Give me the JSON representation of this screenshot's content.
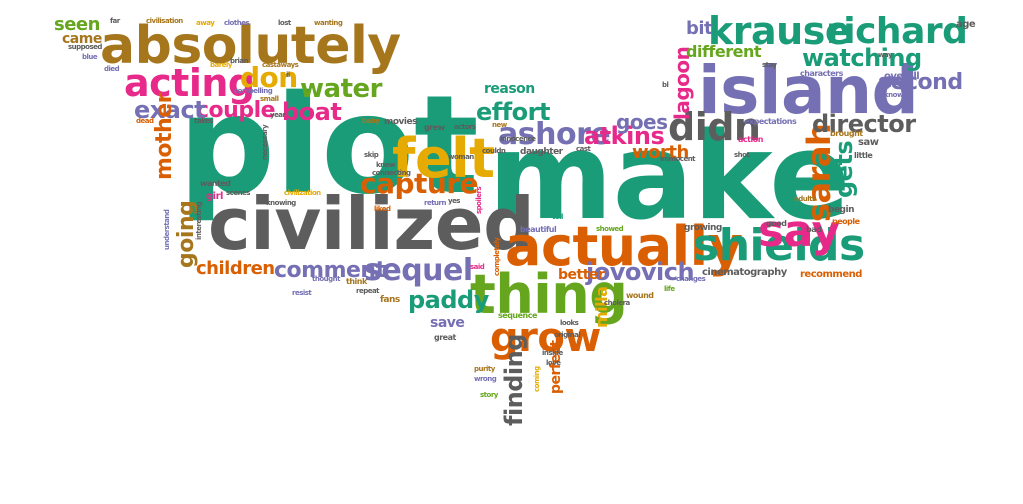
{
  "colors": {
    "teal": "#1a9c78",
    "gray": "#5d5d5d",
    "purple": "#7570b3",
    "orange": "#d95f02",
    "pink": "#e7298a",
    "green": "#66a61e",
    "gold": "#e6ab02",
    "olive": "#a6761d"
  },
  "words": [
    {
      "text": "plot"
    },
    {
      "text": "make"
    },
    {
      "text": "civilized"
    },
    {
      "text": "island"
    },
    {
      "text": "absolutely"
    },
    {
      "text": "actually"
    },
    {
      "text": "thing"
    },
    {
      "text": "shields"
    },
    {
      "text": "felt"
    },
    {
      "text": "krause"
    },
    {
      "text": "richard"
    },
    {
      "text": "grow"
    },
    {
      "text": "acting"
    },
    {
      "text": "sequel"
    },
    {
      "text": "capture"
    },
    {
      "text": "ashore"
    },
    {
      "text": "say"
    },
    {
      "text": "didn"
    },
    {
      "text": "sarah"
    },
    {
      "text": "water"
    },
    {
      "text": "don"
    },
    {
      "text": "watching"
    },
    {
      "text": "second"
    },
    {
      "text": "director"
    },
    {
      "text": "jovovich"
    },
    {
      "text": "paddy"
    },
    {
      "text": "comment"
    },
    {
      "text": "children"
    },
    {
      "text": "effort"
    },
    {
      "text": "boat"
    },
    {
      "text": "couple"
    },
    {
      "text": "exact"
    },
    {
      "text": "atkins"
    },
    {
      "text": "goes"
    },
    {
      "text": "finding"
    },
    {
      "text": "mother"
    },
    {
      "text": "going"
    },
    {
      "text": "gets"
    },
    {
      "text": "worth"
    },
    {
      "text": "lagoon"
    },
    {
      "text": "bit"
    },
    {
      "text": "different"
    },
    {
      "text": "seen"
    },
    {
      "text": "came"
    },
    {
      "text": "reason"
    },
    {
      "text": "better"
    },
    {
      "text": "milla"
    },
    {
      "text": "perfect"
    },
    {
      "text": "save"
    },
    {
      "text": "age"
    },
    {
      "text": "recommend"
    },
    {
      "text": "cinematography"
    },
    {
      "text": "overall"
    },
    {
      "text": "characters"
    },
    {
      "text": "expectations"
    },
    {
      "text": "action"
    },
    {
      "text": "saw"
    },
    {
      "text": "begin"
    },
    {
      "text": "people"
    },
    {
      "text": "bad"
    },
    {
      "text": "good"
    },
    {
      "text": "adults"
    },
    {
      "text": "brought"
    },
    {
      "text": "little"
    },
    {
      "text": "way"
    },
    {
      "text": "growing"
    },
    {
      "text": "changes"
    },
    {
      "text": "life"
    },
    {
      "text": "wound"
    },
    {
      "text": "cholera"
    },
    {
      "text": "showed"
    },
    {
      "text": "beautiful"
    },
    {
      "text": "tell"
    },
    {
      "text": "said"
    },
    {
      "text": "completely"
    },
    {
      "text": "fans"
    },
    {
      "text": "repeat"
    },
    {
      "text": "think"
    },
    {
      "text": "thought"
    },
    {
      "text": "resist"
    },
    {
      "text": "sequence"
    },
    {
      "text": "looks"
    },
    {
      "text": "original"
    },
    {
      "text": "great"
    },
    {
      "text": "inside"
    },
    {
      "text": "love"
    },
    {
      "text": "coming"
    },
    {
      "text": "purity"
    },
    {
      "text": "wrong"
    },
    {
      "text": "story"
    },
    {
      "text": "far"
    },
    {
      "text": "civilisation"
    },
    {
      "text": "away"
    },
    {
      "text": "clothes"
    },
    {
      "text": "lost"
    },
    {
      "text": "wanting"
    },
    {
      "text": "supposed"
    },
    {
      "text": "blue"
    },
    {
      "text": "died"
    },
    {
      "text": "barely"
    },
    {
      "text": "brian"
    },
    {
      "text": "castaways"
    },
    {
      "text": "compelling"
    },
    {
      "text": "small"
    },
    {
      "text": "year"
    },
    {
      "text": "dead"
    },
    {
      "text": "takes"
    },
    {
      "text": "baby"
    },
    {
      "text": "movies"
    },
    {
      "text": "grew"
    },
    {
      "text": "actors"
    },
    {
      "text": "new"
    },
    {
      "text": "innocence"
    },
    {
      "text": "woman"
    },
    {
      "text": "couldn"
    },
    {
      "text": "daughter"
    },
    {
      "text": "cast"
    },
    {
      "text": "necessary"
    },
    {
      "text": "skip"
    },
    {
      "text": "knew"
    },
    {
      "text": "connecting"
    },
    {
      "text": "wanted"
    },
    {
      "text": "girl"
    },
    {
      "text": "scenes"
    },
    {
      "text": "civilization"
    },
    {
      "text": "knowing"
    },
    {
      "text": "liked"
    },
    {
      "text": "return"
    },
    {
      "text": "yes"
    },
    {
      "text": "spoilers"
    },
    {
      "text": "interesting"
    },
    {
      "text": "understand"
    },
    {
      "text": "stay"
    },
    {
      "text": "renewed"
    },
    {
      "text": "know"
    },
    {
      "text": "bl"
    },
    {
      "text": "immocent"
    },
    {
      "text": "shot"
    },
    {
      "text": "ii"
    }
  ]
}
